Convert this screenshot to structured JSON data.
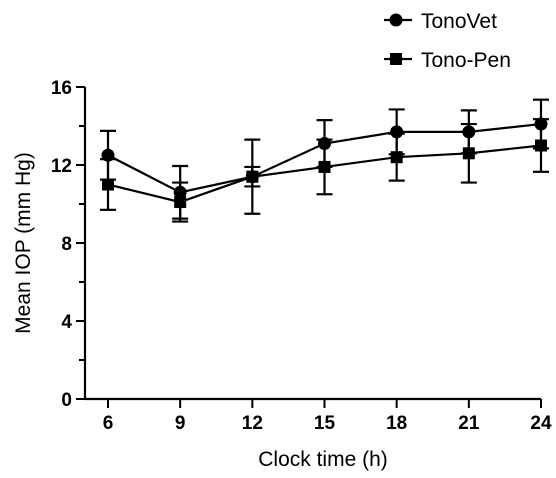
{
  "chart_data": {
    "type": "line",
    "xlabel": "Clock time (h)",
    "ylabel": "Mean IOP (mm Hg)",
    "x": [
      6,
      9,
      12,
      15,
      18,
      21,
      24
    ],
    "xlim": [
      6,
      24
    ],
    "ylim": [
      0,
      16
    ],
    "yticks": [
      0,
      4,
      8,
      12,
      16
    ],
    "xticks": [
      6,
      9,
      12,
      15,
      18,
      21,
      24
    ],
    "legend_position": "top-right",
    "grid": false,
    "series": [
      {
        "name": "TonoVet",
        "marker": "circle",
        "color": "#000000",
        "values": [
          12.5,
          10.6,
          11.4,
          13.1,
          13.7,
          13.7,
          14.1
        ],
        "error": [
          1.25,
          1.35,
          0.5,
          1.2,
          1.15,
          1.1,
          1.25
        ]
      },
      {
        "name": "Tono-Pen",
        "marker": "square",
        "color": "#000000",
        "values": [
          11.0,
          10.1,
          11.4,
          11.9,
          12.4,
          12.6,
          13.0
        ],
        "error": [
          1.3,
          1.0,
          1.9,
          1.4,
          1.2,
          1.5,
          1.35
        ]
      }
    ]
  }
}
